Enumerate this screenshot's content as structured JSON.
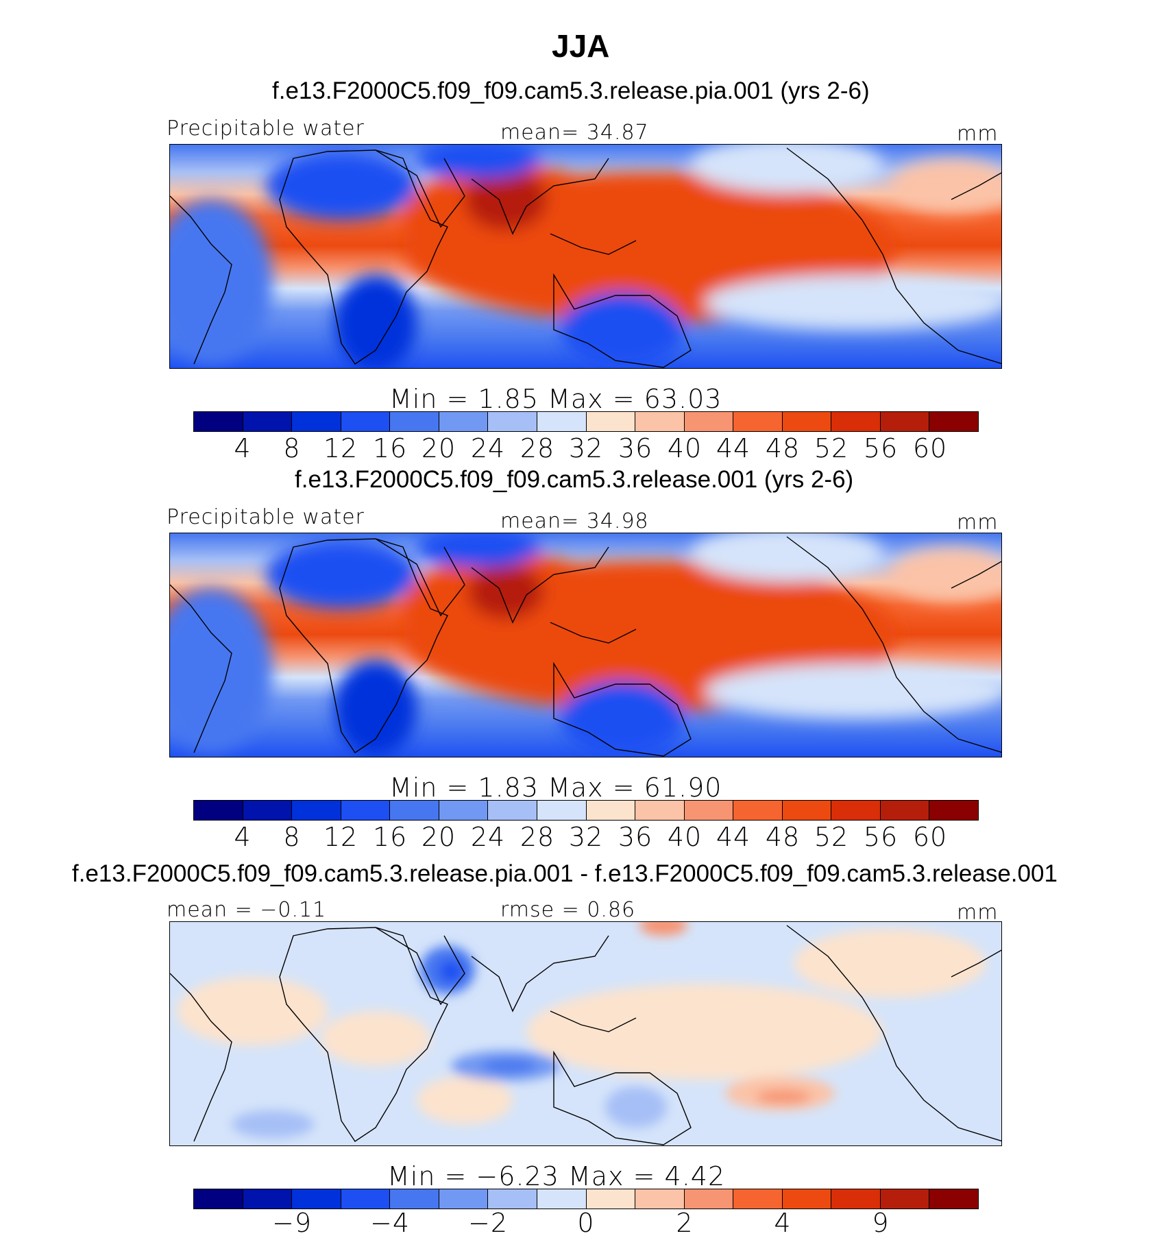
{
  "figure": {
    "title": "JJA"
  },
  "colors": [
    "#000080",
    "#0013AD",
    "#0031DB",
    "#1D4FF2",
    "#4677F0",
    "#7198F2",
    "#A6BFF6",
    "#D5E4FA",
    "#FCE3CD",
    "#FBC3A7",
    "#F79472",
    "#F6652F",
    "#EC4A10",
    "#D92E07",
    "#B51E0A",
    "#8B0000"
  ],
  "panels": [
    {
      "title": "f.e13.F2000C5.f09_f09.cam5.3.release.pia.001 (yrs 2-6)",
      "left_label": "Precipitable  water",
      "center_label": "mean=   34.87",
      "right_label": "mm",
      "stats": "Min  =     1.85  Max  =    63.03",
      "colorbar_ticks": [
        "4",
        "8",
        "12",
        "16",
        "20",
        "24",
        "28",
        "32",
        "36",
        "40",
        "44",
        "48",
        "52",
        "56",
        "60"
      ]
    },
    {
      "title": "f.e13.F2000C5.f09_f09.cam5.3.release.001 (yrs 2-6)",
      "left_label": "Precipitable  water",
      "center_label": "mean=   34.98",
      "right_label": "mm",
      "stats": "Min  =     1.83  Max  =    61.90",
      "colorbar_ticks": [
        "4",
        "8",
        "12",
        "16",
        "20",
        "24",
        "28",
        "32",
        "36",
        "40",
        "44",
        "48",
        "52",
        "56",
        "60"
      ]
    },
    {
      "title": "f.e13.F2000C5.f09_f09.cam5.3.release.pia.001 - f.e13.F2000C5.f09_f09.cam5.3.release.001",
      "left_label": "mean  =   −0.11",
      "center_label": "rmse  =    0.86",
      "right_label": "mm",
      "stats": "Min  =    −6.23  Max  =     4.42",
      "colorbar_ticks": [
        "−9",
        "−4",
        "−2",
        "0",
        "2",
        "4",
        "9"
      ]
    }
  ]
}
